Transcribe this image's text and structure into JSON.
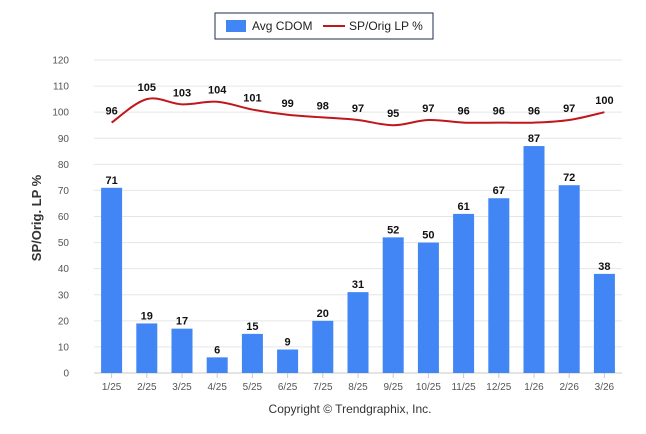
{
  "chart_data": {
    "type": "bar",
    "categories": [
      "1/25",
      "2/25",
      "3/25",
      "4/25",
      "5/25",
      "6/25",
      "7/25",
      "8/25",
      "9/25",
      "10/25",
      "11/25",
      "12/25",
      "1/26",
      "2/26",
      "3/26"
    ],
    "series": [
      {
        "name": "Avg CDOM",
        "type": "bar",
        "color": "#4285f4",
        "values": [
          71,
          19,
          17,
          6,
          15,
          9,
          20,
          31,
          52,
          50,
          61,
          67,
          87,
          72,
          38
        ]
      },
      {
        "name": "SP/Orig LP %",
        "type": "line",
        "color": "#c0171c",
        "values": [
          96,
          105,
          103,
          104,
          101,
          99,
          98,
          97,
          95,
          97,
          96,
          96,
          96,
          97,
          100
        ]
      }
    ],
    "ylabel": "SP/Orig. LP %",
    "xlabel": "",
    "ylim": [
      0,
      120
    ],
    "yticks": [
      0,
      10,
      20,
      30,
      40,
      50,
      60,
      70,
      80,
      90,
      100,
      110,
      120
    ],
    "grid": true,
    "legend": "top-center"
  },
  "footer": "Copyright © Trendgraphix, Inc."
}
